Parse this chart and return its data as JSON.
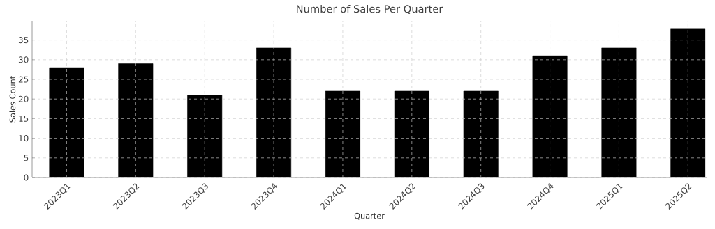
{
  "chart_data": {
    "type": "bar",
    "title": "Number of Sales Per Quarter",
    "xlabel": "Quarter",
    "ylabel": "Sales Count",
    "categories": [
      "2023Q1",
      "2023Q2",
      "2023Q3",
      "2023Q4",
      "2024Q1",
      "2024Q2",
      "2024Q3",
      "2024Q4",
      "2025Q1",
      "2025Q2"
    ],
    "values": [
      28,
      29,
      21,
      33,
      22,
      22,
      22,
      31,
      33,
      38
    ],
    "color": "#000000",
    "ylim": [
      0,
      39.9
    ],
    "yticks": [
      0,
      5,
      10,
      15,
      20,
      25,
      30,
      35
    ],
    "grid": true
  }
}
